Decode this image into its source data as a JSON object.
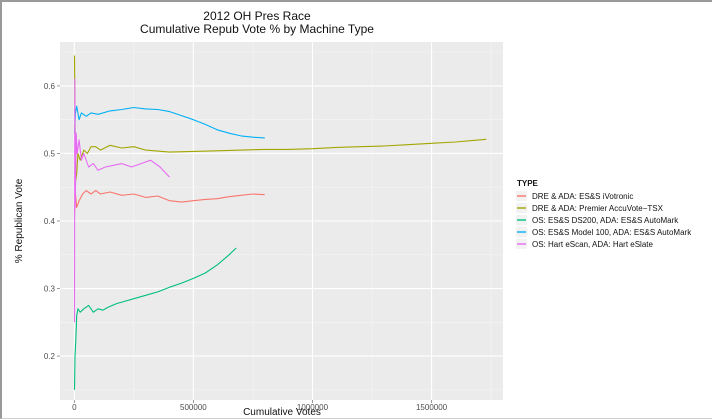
{
  "chart_data": {
    "type": "line",
    "title": "2012 OH Pres Race",
    "subtitle": "Cumulative Repub Vote % by Machine Type",
    "xlabel": "Cumulative Votes",
    "ylabel": "% Republican Vote",
    "xlim": [
      -60000,
      1800000
    ],
    "ylim": [
      0.135,
      0.665
    ],
    "x_ticks": [
      0,
      500000,
      1000000,
      1500000
    ],
    "x_tick_labels": [
      "0",
      "500000",
      "1000000",
      "1500000"
    ],
    "y_ticks": [
      0.2,
      0.3,
      0.4,
      0.5,
      0.6
    ],
    "y_tick_labels": [
      "0.2",
      "0.3",
      "0.4",
      "0.5",
      "0.6"
    ],
    "grid": true,
    "panel_background": "#ebebeb",
    "legend_position": "right",
    "legend_title": "TYPE",
    "series": [
      {
        "name": "DRE & ADA: ES&S iVotronic",
        "color": "#f8766d",
        "x": [
          1000,
          5000,
          10000,
          20000,
          35000,
          50000,
          70000,
          90000,
          110000,
          150000,
          200000,
          250000,
          300000,
          350000,
          400000,
          450000,
          500000,
          550000,
          600000,
          650000,
          700000,
          750000,
          800000
        ],
        "y": [
          0.41,
          0.44,
          0.42,
          0.43,
          0.44,
          0.445,
          0.44,
          0.445,
          0.44,
          0.443,
          0.438,
          0.44,
          0.435,
          0.437,
          0.43,
          0.428,
          0.43,
          0.432,
          0.433,
          0.436,
          0.438,
          0.44,
          0.439
        ]
      },
      {
        "name": "DRE & ADA: Premier AccuVote−TSX",
        "color": "#a3a500",
        "x": [
          1000,
          3000,
          6000,
          10000,
          15000,
          25000,
          40000,
          55000,
          70000,
          90000,
          110000,
          150000,
          200000,
          250000,
          300000,
          400000,
          500000,
          600000,
          700000,
          800000,
          900000,
          1000000,
          1100000,
          1200000,
          1300000,
          1400000,
          1500000,
          1600000,
          1700000,
          1730000
        ],
        "y": [
          0.645,
          0.55,
          0.46,
          0.47,
          0.5,
          0.49,
          0.505,
          0.5,
          0.51,
          0.51,
          0.505,
          0.512,
          0.508,
          0.51,
          0.505,
          0.502,
          0.503,
          0.504,
          0.505,
          0.506,
          0.506,
          0.507,
          0.509,
          0.51,
          0.511,
          0.513,
          0.515,
          0.517,
          0.52,
          0.521
        ]
      },
      {
        "name": "OS: ES&S DS200, ADA: ES&S AutoMark",
        "color": "#00bf7d",
        "x": [
          1000,
          3000,
          6000,
          10000,
          15000,
          25000,
          40000,
          60000,
          80000,
          100000,
          120000,
          140000,
          160000,
          180000,
          200000,
          250000,
          300000,
          350000,
          400000,
          450000,
          500000,
          550000,
          600000,
          650000,
          680000
        ],
        "y": [
          0.15,
          0.2,
          0.22,
          0.26,
          0.27,
          0.265,
          0.27,
          0.275,
          0.265,
          0.27,
          0.268,
          0.272,
          0.275,
          0.278,
          0.28,
          0.285,
          0.29,
          0.295,
          0.302,
          0.308,
          0.315,
          0.323,
          0.335,
          0.35,
          0.36
        ]
      },
      {
        "name": "OS: ES&S Model 100, ADA: ES&S AutoMark",
        "color": "#00b0f6",
        "x": [
          1000,
          5000,
          10000,
          20000,
          30000,
          50000,
          70000,
          100000,
          150000,
          200000,
          250000,
          300000,
          350000,
          400000,
          450000,
          500000,
          550000,
          600000,
          650000,
          700000,
          750000,
          800000
        ],
        "y": [
          0.53,
          0.56,
          0.57,
          0.55,
          0.56,
          0.555,
          0.56,
          0.558,
          0.563,
          0.565,
          0.568,
          0.566,
          0.565,
          0.562,
          0.556,
          0.55,
          0.543,
          0.535,
          0.53,
          0.526,
          0.524,
          0.523
        ]
      },
      {
        "name": "OS: Hart eScan, ADA: Hart eSlate",
        "color": "#e76bf3",
        "x": [
          1000,
          2000,
          4000,
          8000,
          12000,
          20000,
          30000,
          40000,
          60000,
          80000,
          100000,
          130000,
          160000,
          200000,
          240000,
          280000,
          320000,
          360000,
          400000
        ],
        "y": [
          0.25,
          0.61,
          0.42,
          0.53,
          0.5,
          0.52,
          0.49,
          0.5,
          0.48,
          0.485,
          0.475,
          0.48,
          0.482,
          0.485,
          0.48,
          0.485,
          0.49,
          0.48,
          0.465
        ]
      }
    ]
  }
}
